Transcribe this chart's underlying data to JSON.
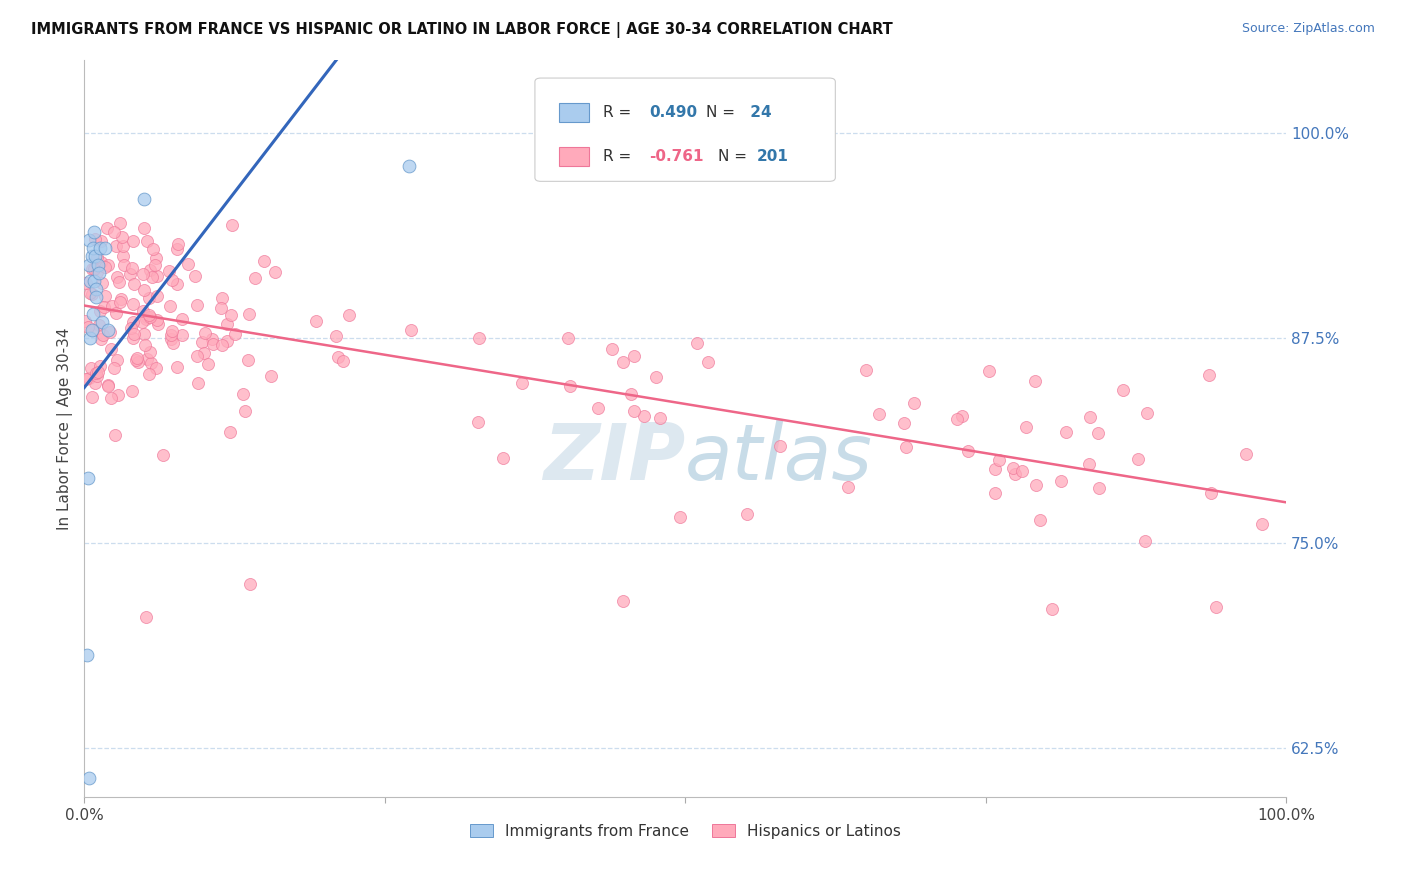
{
  "title": "IMMIGRANTS FROM FRANCE VS HISPANIC OR LATINO IN LABOR FORCE | AGE 30-34 CORRELATION CHART",
  "source": "Source: ZipAtlas.com",
  "ylabel": "In Labor Force | Age 30-34",
  "xlim": [
    0.0,
    1.0
  ],
  "ylim": [
    0.595,
    1.045
  ],
  "right_yticks": [
    0.625,
    0.75,
    0.875,
    1.0
  ],
  "right_yticklabels": [
    "62.5%",
    "75.0%",
    "87.5%",
    "100.0%"
  ],
  "legend_label_blue": "Immigrants from France",
  "legend_label_pink": "Hispanics or Latinos",
  "blue_color": "#aaccee",
  "pink_color": "#ffaabb",
  "blue_edge_color": "#6699cc",
  "pink_edge_color": "#ee7799",
  "blue_line_color": "#3366bb",
  "pink_line_color": "#ee6688",
  "r_color": "#3377aa",
  "watermark_color": "#dde8f0",
  "background_color": "#ffffff",
  "grid_color": "#ccddee",
  "blue_trend_x": [
    0.0,
    0.21
  ],
  "blue_trend_y": [
    0.845,
    1.045
  ],
  "pink_trend_x": [
    0.0,
    1.0
  ],
  "pink_trend_y": [
    0.895,
    0.775
  ]
}
